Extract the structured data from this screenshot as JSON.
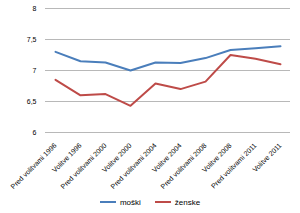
{
  "chart_data": {
    "type": "line",
    "categories": [
      "Pred volitvami 1996",
      "Volitve 1996",
      "Pred volitvami 2000",
      "Volitve 2000",
      "Pred volitvami 2004",
      "Volitve 2004",
      "Pred volitvami 2008",
      "Volitve 2008",
      "Pred volitvami 2011",
      "Volitve 2011"
    ],
    "series": [
      {
        "name": "moški",
        "color": "#4a7ebb",
        "values": [
          7.3,
          7.15,
          7.13,
          7.0,
          7.13,
          7.12,
          7.2,
          7.33,
          7.36,
          7.39
        ]
      },
      {
        "name": "ženske",
        "color": "#be4b48",
        "values": [
          6.85,
          6.6,
          6.62,
          6.43,
          6.79,
          6.7,
          6.82,
          7.25,
          7.19,
          7.1
        ]
      }
    ],
    "ylim": [
      6,
      8
    ],
    "yticks": [
      6,
      {
        "value": 6.5,
        "label": "6,5"
      },
      7,
      {
        "value": 7.5,
        "label": "7,5"
      },
      8
    ],
    "grid": true,
    "legend": "bottom"
  }
}
